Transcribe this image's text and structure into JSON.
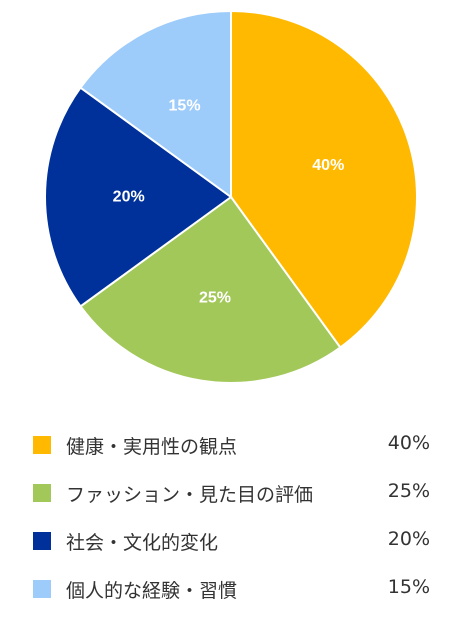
{
  "chart_data": {
    "type": "pie",
    "title": "",
    "categories": [
      "健康・実用性の観点",
      "ファッション・見た目の評価",
      "社会・文化的変化",
      "個人的な経験・習慣"
    ],
    "values": [
      40,
      25,
      20,
      15
    ],
    "value_labels": [
      "40%",
      "25%",
      "20%",
      "15%"
    ],
    "colors": [
      "#FFB900",
      "#A3C85A",
      "#00319A",
      "#9DCBFA"
    ],
    "legend_position": "bottom",
    "start_angle": "12 o'clock",
    "direction": "clockwise"
  }
}
